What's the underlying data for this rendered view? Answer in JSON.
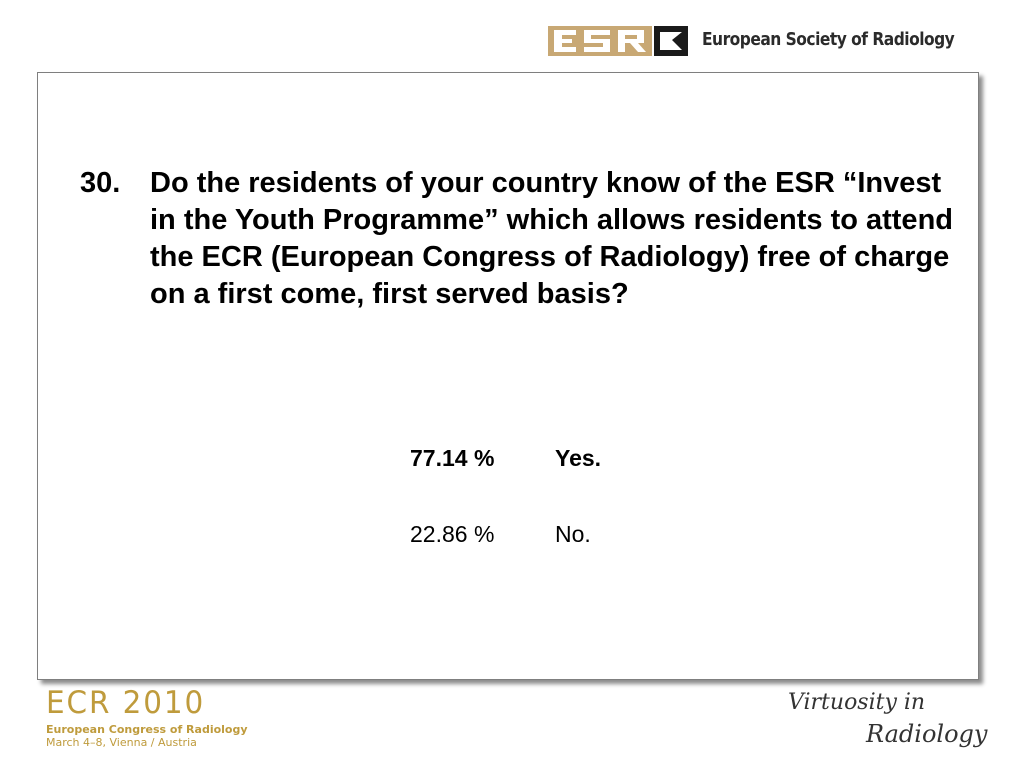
{
  "header": {
    "logo_text": "ESR",
    "org_name": "European Society of Radiology"
  },
  "slide": {
    "question_number": "30.",
    "question_text": "Do the residents of your country know of the ESR “Invest in the Youth Programme” which allows residents to attend the ECR (European Congress of Radiology) free of charge on a first come, first served basis?",
    "answers": [
      {
        "percent": "77.14 %",
        "label": "Yes.",
        "value": 77.14,
        "bold": true
      },
      {
        "percent": "22.86 %",
        "label": "No.",
        "value": 22.86,
        "bold": false
      }
    ]
  },
  "footer": {
    "ecr_title": "ECR 2010",
    "ecr_subtitle": "European Congress of Radiology",
    "ecr_dates": "March 4–8, Vienna / Austria",
    "tagline_line1": "Virtuosity in",
    "tagline_line2": "Radiology"
  },
  "colors": {
    "ecr_gold": "#bf9b3c",
    "esr_tan": "#c8a874",
    "esr_dark": "#1a1a1a"
  }
}
